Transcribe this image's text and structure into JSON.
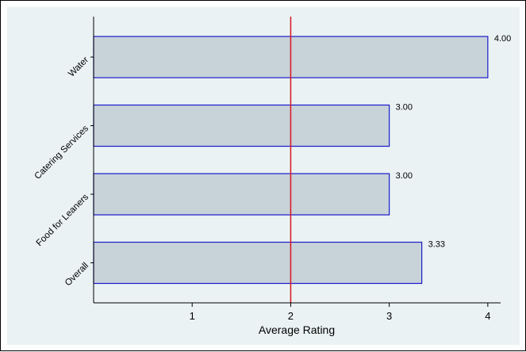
{
  "chart_data": {
    "type": "bar",
    "orientation": "horizontal",
    "categories": [
      "Water",
      "Catering Services",
      "Food for Leaners",
      "Overall"
    ],
    "values": [
      4.0,
      3.0,
      3.0,
      3.33
    ],
    "value_labels": [
      "4.00",
      "3.00",
      "3.00",
      "3.33"
    ],
    "title": "",
    "xlabel": "Average Rating",
    "ylabel": "",
    "xlim": [
      0,
      4.13
    ],
    "xticks": [
      1,
      2,
      3,
      4
    ],
    "xtick_labels": [
      "1",
      "2",
      "3",
      "4"
    ],
    "reference_line": {
      "x": 2
    },
    "grid": false,
    "legend": "none",
    "colors": {
      "plot_background": "#eaf2f3",
      "bar_fill": "#c7d2d9",
      "bar_stroke": "#1a1acc",
      "reference_line": "#d9141e",
      "axis": "#000000"
    }
  }
}
